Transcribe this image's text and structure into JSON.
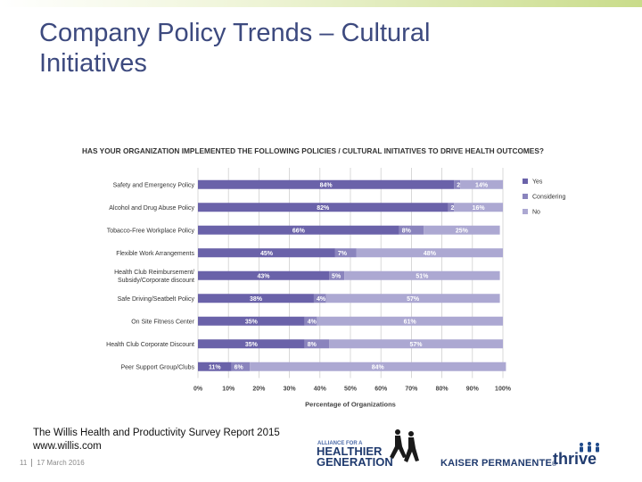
{
  "slide": {
    "title_line1": "Company Policy Trends – Cultural",
    "title_line2": "Initiatives",
    "source_line1": "The Willis Health and Productivity Survey Report 2015",
    "source_line2": "www.willis.com",
    "page_number": "11",
    "date": "17 March 2016",
    "logos": {
      "alliance_small": "ALLIANCE FOR A",
      "alliance_big1": "HEALTHIER",
      "alliance_big2": "GENERATION",
      "kaiser": "KAISER PERMANENTE",
      "kaiser_mark": "®",
      "thrive": "thrive"
    }
  },
  "colors": {
    "yes": "#6a62a9",
    "considering": "#8a84bd",
    "no": "#aca8d2",
    "title": "#3d4a7f",
    "grid": "#cfcfcf"
  },
  "chart_data": {
    "type": "bar",
    "orientation": "horizontal-stacked",
    "title": "HAS YOUR ORGANIZATION IMPLEMENTED THE FOLLOWING POLICIES / CULTURAL INITIATIVES TO DRIVE HEALTH OUTCOMES?",
    "xlabel": "Percentage of Organizations",
    "xlim": [
      0,
      100
    ],
    "xticks": [
      "0%",
      "10%",
      "20%",
      "30%",
      "40%",
      "50%",
      "60%",
      "70%",
      "80%",
      "90%",
      "100%"
    ],
    "legend_position": "right",
    "grid": true,
    "categories": [
      "Safety and Emergency Policy",
      "Alcohol and Drug Abuse Policy",
      "Tobacco-Free Workplace Policy",
      "Flexible Work Arrangements",
      "Health Club Reimbursement/ Subsidy/Corporate discount",
      "Safe Driving/Seatbelt Policy",
      "On Site Fitness Center",
      "Health Club Corporate Discount",
      "Peer Support Group/Clubs"
    ],
    "series": [
      {
        "name": "Yes",
        "values": [
          84,
          82,
          66,
          45,
          43,
          38,
          35,
          35,
          11
        ]
      },
      {
        "name": "Considering",
        "values": [
          2,
          2,
          8,
          7,
          5,
          4,
          4,
          8,
          6
        ]
      },
      {
        "name": "No",
        "values": [
          14,
          16,
          25,
          48,
          51,
          57,
          61,
          57,
          84
        ]
      }
    ]
  }
}
